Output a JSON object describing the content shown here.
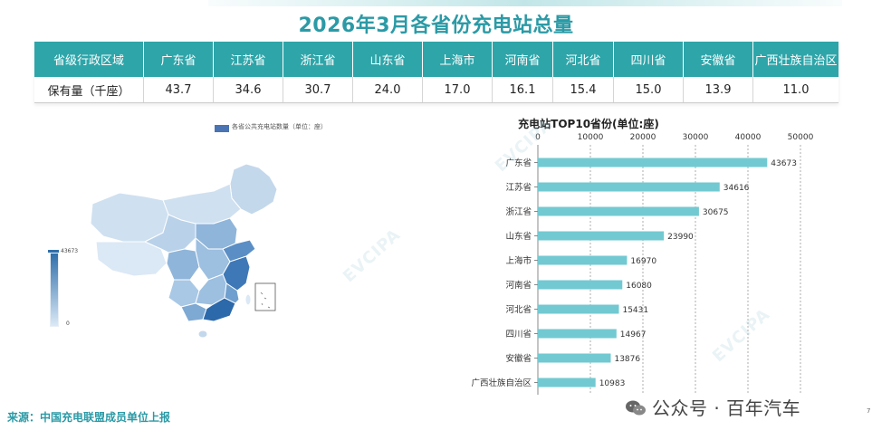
{
  "title": "2026年3月各省份充电站总量",
  "table": {
    "header_label": "省级行政区域",
    "row_label": "保有量（千座）",
    "provinces": [
      "广东省",
      "江苏省",
      "浙江省",
      "山东省",
      "上海市",
      "河南省",
      "河北省",
      "四川省",
      "安徽省",
      "广西壮族自治区"
    ],
    "values": [
      "43.7",
      "34.6",
      "30.7",
      "24.0",
      "17.0",
      "16.1",
      "15.4",
      "15.0",
      "13.9",
      "11.0"
    ]
  },
  "map": {
    "legend": "各省公共充电站数量（单位：座）",
    "scale_max": "43673",
    "scale_min": "0",
    "colors": {
      "low": "#dbe9f6",
      "high": "#2f6fab"
    }
  },
  "chart_data": {
    "type": "bar",
    "orientation": "horizontal",
    "title": "充电站TOP10省份(单位:座)",
    "categories": [
      "广东省",
      "江苏省",
      "浙江省",
      "山东省",
      "上海市",
      "河南省",
      "河北省",
      "四川省",
      "安徽省",
      "广西壮族自治区"
    ],
    "values": [
      43673,
      34616,
      30675,
      23990,
      16970,
      16080,
      15431,
      14967,
      13876,
      10983
    ],
    "xlim": [
      0,
      50000
    ],
    "xticks": [
      0,
      10000,
      20000,
      30000,
      40000,
      50000
    ],
    "grid": true,
    "bar_color": "#72c9d1"
  },
  "watermark": "EVCIPA",
  "source": "来源：中国充电联盟成员单位上报",
  "wechat": "公众号 · 百年汽车",
  "page_number": "7"
}
